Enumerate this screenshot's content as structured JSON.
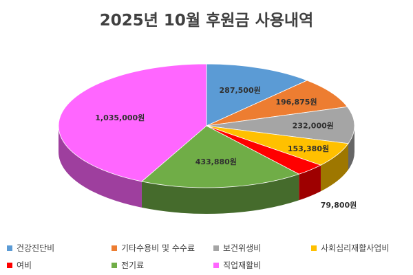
{
  "chart_data": {
    "type": "pie",
    "title": "2025년 10월 후원금 사용내역",
    "unit": "원",
    "legend_position": "bottom",
    "slices": [
      {
        "name": "건강진단비",
        "value": 287500,
        "label": "287,500원",
        "color": "#5B9BD5"
      },
      {
        "name": "기타수용비 및 수수료",
        "value": 196875,
        "label": "196,875원",
        "color": "#ED7D31"
      },
      {
        "name": "보건위생비",
        "value": 232000,
        "label": "232,000원",
        "color": "#A5A5A5"
      },
      {
        "name": "사회심리재활사업비",
        "value": 153380,
        "label": "153,380원",
        "color": "#FFC000"
      },
      {
        "name": "여비",
        "value": 79800,
        "label": "79,800원",
        "color": "#FF0000"
      },
      {
        "name": "전기료",
        "value": 433880,
        "label": "433,880원",
        "color": "#70AD47"
      },
      {
        "name": "직업재활비",
        "value": 1035000,
        "label": "1,035,000원",
        "color": "#FF66FF"
      }
    ]
  }
}
